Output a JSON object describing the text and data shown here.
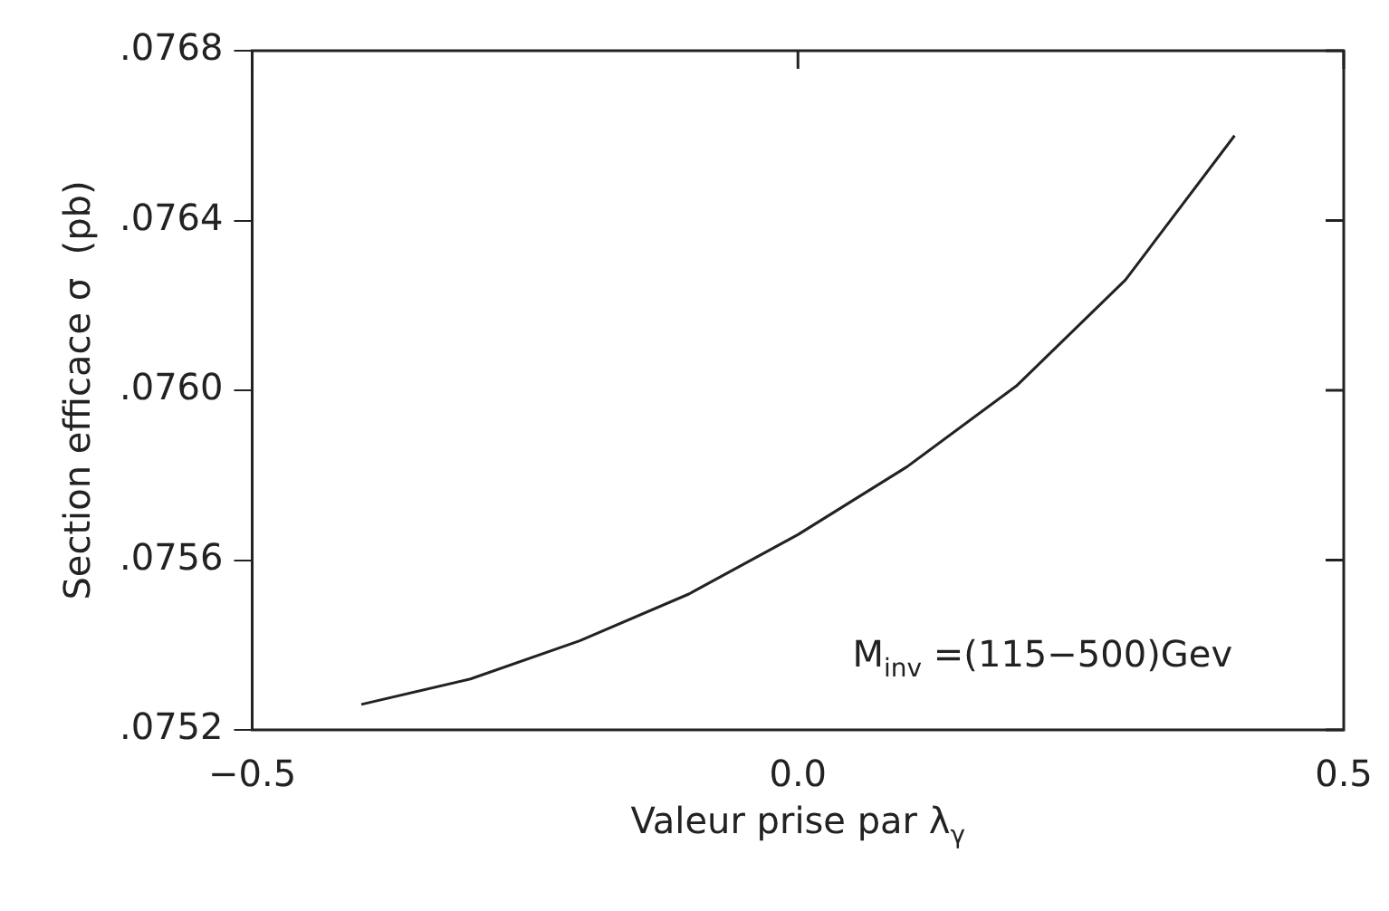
{
  "chart_data": {
    "type": "line",
    "xlabel": "Valeur prise par λ$_{γ}$",
    "ylabel": "Section efficace σ  (pb)",
    "annotations": [
      "M$_{inv}$ =(115−500)Gev"
    ],
    "x": [
      -0.4,
      -0.3,
      -0.2,
      -0.1,
      0.0,
      0.1,
      0.2,
      0.3,
      0.4
    ],
    "series": [
      {
        "color": "#222222",
        "values": [
          0.07526,
          0.07532,
          0.07541,
          0.07552,
          0.07566,
          0.07582,
          0.07601,
          0.07626,
          0.0766
        ]
      }
    ],
    "xlim": [
      -0.5,
      0.5
    ],
    "ylim": [
      0.0752,
      0.0768
    ],
    "xticks": [
      {
        "value": -0.5,
        "label": "−0.5"
      },
      {
        "value": 0,
        "label": "0.0"
      },
      {
        "value": 0.5,
        "label": "0.5"
      }
    ],
    "yticks": [
      {
        "value": 0.0752,
        "label": ".0752"
      },
      {
        "value": 0.0756,
        "label": ".0756"
      },
      {
        "value": 0.076,
        "label": ".0760"
      },
      {
        "value": 0.0764,
        "label": ".0764"
      },
      {
        "value": 0.0768,
        "label": ".0768"
      }
    ],
    "grid": false,
    "legend": false,
    "marker": "none",
    "line_style": "solid"
  }
}
